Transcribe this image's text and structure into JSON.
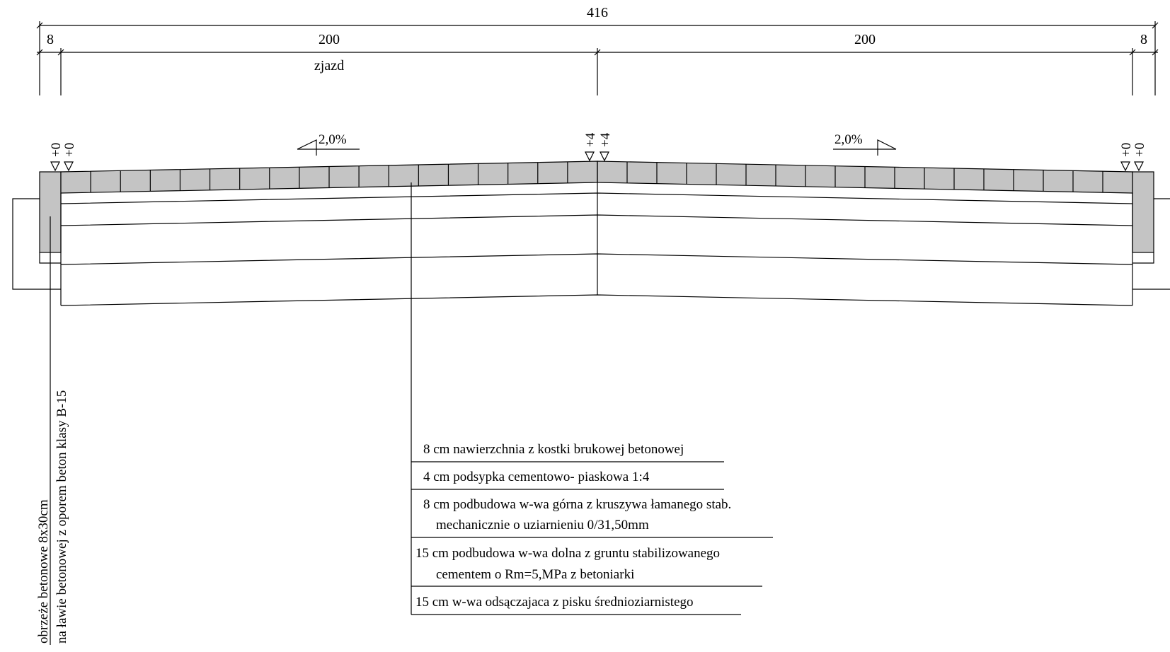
{
  "dimensions": {
    "total": "416",
    "left_edge": "8",
    "left_span": "200",
    "right_span": "200",
    "right_edge": "8",
    "zone_label": "zjazd"
  },
  "elevations": {
    "left_outer": "+0",
    "left_inner": "+0",
    "center_left": "+4",
    "center_right": "+4",
    "right_inner": "+0",
    "right_outer": "+0"
  },
  "slopes": {
    "left": "2,0%",
    "right": "2,0%"
  },
  "curb_label": {
    "line1": "obrzeże betonowe 8x30cm",
    "line2": "na ławie betonowej z oporem beton klasy B-15"
  },
  "layers": [
    {
      "line1": "8 cm nawierzchnia z kostki  brukowej  betonowej",
      "line2": ""
    },
    {
      "line1": "4 cm podsypka  cementowo- piaskowa 1:4",
      "line2": ""
    },
    {
      "line1": "8 cm podbudowa w-wa górna z kruszywa  łamanego stab.",
      "line2": "mechanicznie o uziarnieniu 0/31,50mm"
    },
    {
      "line1": "15 cm podbudowa w-wa dolna  z gruntu stabilizowanego",
      "line2": "cementem o Rm=5,MPa z betoniarki"
    },
    {
      "line1": "15 cm w-wa  odsączajaca  z pisku  średnioziarnistego",
      "line2": ""
    }
  ]
}
